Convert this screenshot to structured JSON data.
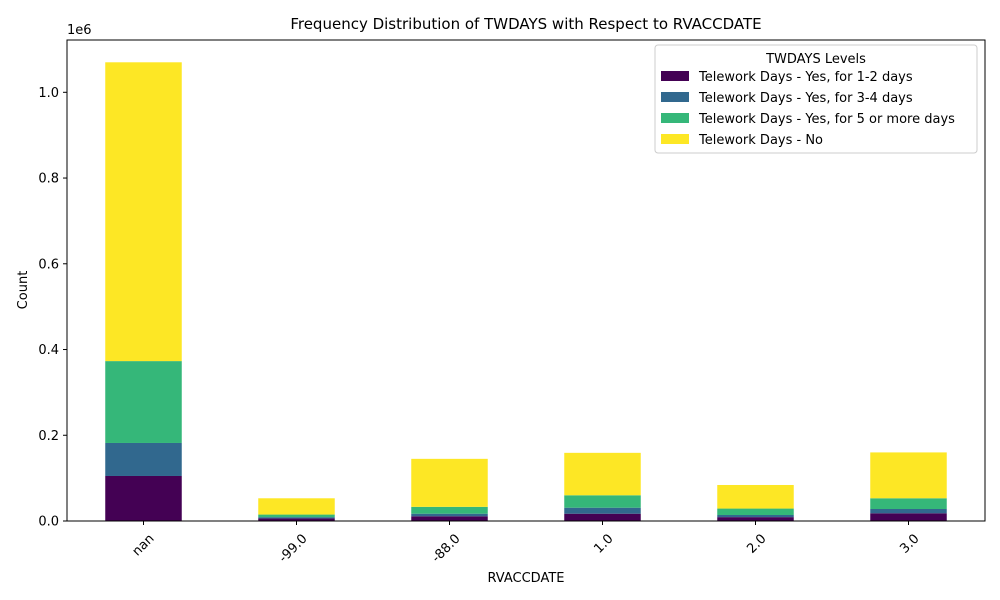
{
  "chart_data": {
    "type": "bar",
    "stacked": true,
    "title": "Frequency Distribution of TWDAYS with Respect to RVACCDATE",
    "xlabel": "RVACCDATE",
    "ylabel": "Count",
    "y_offset_label": "1e6",
    "y_tick_labels": [
      "0.0",
      "0.2",
      "0.4",
      "0.6",
      "0.8",
      "1.0"
    ],
    "y_tick_values": [
      0,
      200000,
      400000,
      600000,
      800000,
      1000000
    ],
    "ylim": [
      0,
      1122000
    ],
    "categories": [
      "nan",
      "-99.0",
      "-88.0",
      "1.0",
      "2.0",
      "3.0"
    ],
    "legend": {
      "title": "TWDAYS Levels",
      "position": "top-right"
    },
    "series": [
      {
        "name": "Telework Days - Yes, for 1-2 days",
        "color": "#440154",
        "values": [
          105000,
          6000,
          11000,
          17000,
          9000,
          18000
        ]
      },
      {
        "name": "Telework Days - Yes, for 3-4 days",
        "color": "#31688e",
        "values": [
          77000,
          3000,
          6000,
          14000,
          5000,
          10000
        ]
      },
      {
        "name": "Telework Days - Yes, for 5 or more days",
        "color": "#35b779",
        "values": [
          191000,
          6000,
          16000,
          29000,
          15000,
          25000
        ]
      },
      {
        "name": "Telework Days - No",
        "color": "#fde725",
        "values": [
          697000,
          38000,
          112000,
          99000,
          55000,
          107000
        ]
      }
    ]
  }
}
